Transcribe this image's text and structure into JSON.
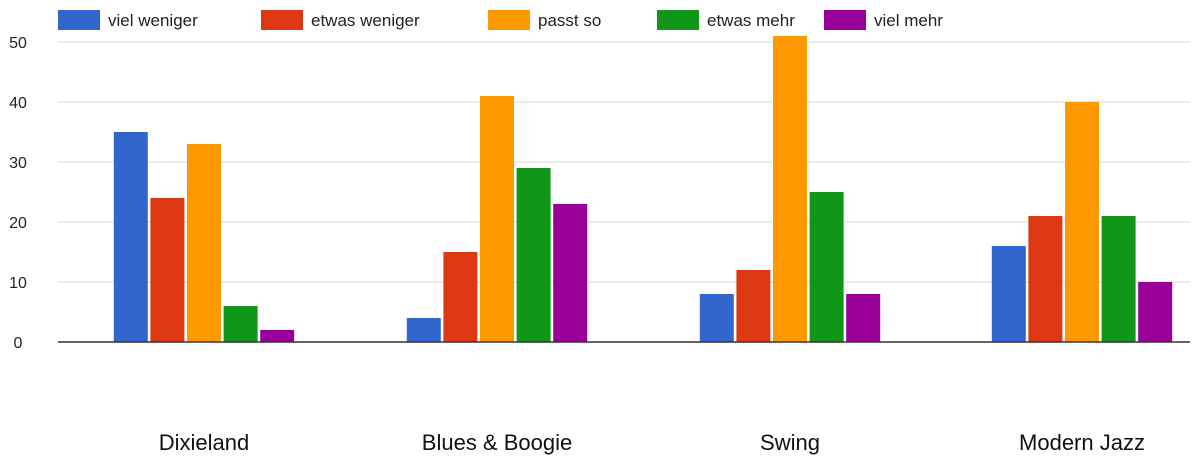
{
  "chart_data": {
    "type": "bar",
    "title": "",
    "xlabel": "",
    "ylabel": "",
    "categories": [
      "Dixieland",
      "Blues & Boogie",
      "Swing",
      "Modern Jazz"
    ],
    "ylim": [
      0,
      50
    ],
    "yticks": [
      0,
      10,
      20,
      30,
      40,
      50
    ],
    "grid": true,
    "legend_position": "top-left",
    "series": [
      {
        "name": "viel weniger",
        "color": "#3366cc",
        "values": [
          35,
          4,
          8,
          16
        ]
      },
      {
        "name": "etwas weniger",
        "color": "#dc3912",
        "values": [
          24,
          15,
          12,
          21
        ]
      },
      {
        "name": "passt so",
        "color": "#ff9900",
        "values": [
          33,
          41,
          51,
          40
        ]
      },
      {
        "name": "etwas mehr",
        "color": "#109618",
        "values": [
          6,
          29,
          25,
          21
        ]
      },
      {
        "name": "viel mehr",
        "color": "#990099",
        "values": [
          2,
          23,
          8,
          10
        ]
      }
    ]
  }
}
